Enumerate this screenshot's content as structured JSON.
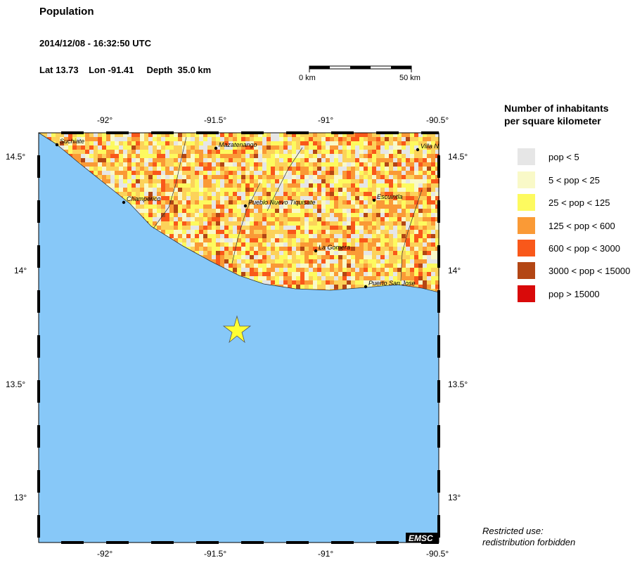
{
  "header": {
    "title": "Population",
    "datetime": "2014/12/08 - 16:32:50 UTC",
    "location": "Lat 13.73    Lon -91.41     Depth  35.0 km"
  },
  "scale": {
    "left_label": "0 km",
    "right_label": "50 km"
  },
  "map": {
    "lon_ticks": [
      "-92°",
      "-91.5°",
      "-91°",
      "-90.5°"
    ],
    "lat_ticks": [
      "14.5°",
      "14°",
      "13.5°",
      "13°"
    ],
    "ocean_color": "#87c8f8",
    "epicenter": {
      "lat": 13.73,
      "lon": -91.41,
      "color": "#ffff33",
      "marker": "star"
    },
    "cities": [
      {
        "name": "Suchiate"
      },
      {
        "name": "Mazatenango"
      },
      {
        "name": "Villa N"
      },
      {
        "name": "Champerico"
      },
      {
        "name": "Pueblo Nuevo Tiquisate"
      },
      {
        "name": "Escuintla"
      },
      {
        "name": "La Gomera"
      },
      {
        "name": "Puerto San Jose"
      }
    ],
    "watermark": "EMSC"
  },
  "legend": {
    "title_line1": "Number of inhabitants",
    "title_line2": "per square kilometer",
    "items": [
      {
        "label": "pop < 5",
        "color": "#e6e6e6"
      },
      {
        "label": "5 < pop < 25",
        "color": "#f9f9c8"
      },
      {
        "label": "25 < pop < 125",
        "color": "#fdfa5f"
      },
      {
        "label": "125 < pop < 600",
        "color": "#fa9a36"
      },
      {
        "label": "600 < pop < 3000",
        "color": "#f9581a"
      },
      {
        "label": "3000 < pop < 15000",
        "color": "#b34614"
      },
      {
        "label": "pop > 15000",
        "color": "#d90a0a"
      }
    ]
  },
  "note": {
    "line1": "Restricted use:",
    "line2": "redistribution forbidden"
  }
}
